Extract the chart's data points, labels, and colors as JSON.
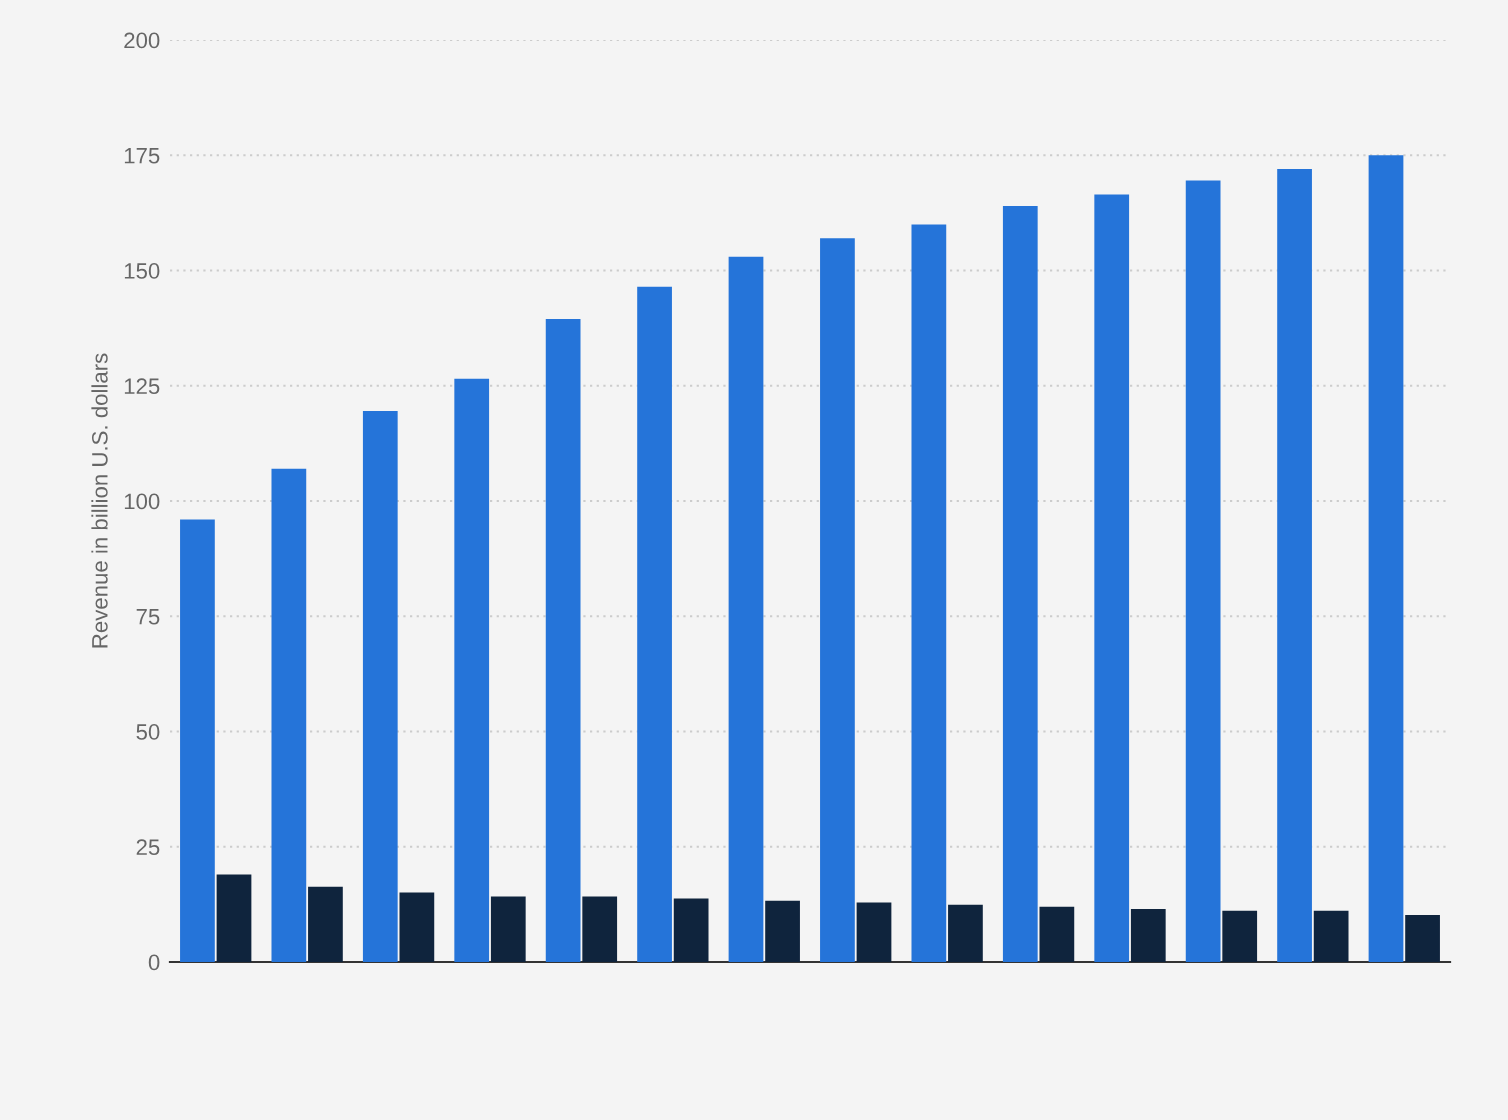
{
  "chart_data": {
    "type": "bar",
    "ylabel": "Revenue in billion U.S. dollars",
    "categories": [
      null,
      null,
      null,
      null,
      null,
      null,
      null,
      null,
      null,
      null,
      null,
      null,
      null,
      null
    ],
    "series": [
      {
        "color": "#2574d9",
        "values": [
          96,
          107,
          119.5,
          126.5,
          139.5,
          146.5,
          153,
          157,
          160,
          164,
          166.5,
          169.5,
          172,
          175
        ]
      },
      {
        "color": "#0f243d",
        "values": [
          19,
          16.3,
          15.1,
          14.2,
          14.2,
          13.8,
          13.3,
          12.9,
          12.4,
          12,
          11.5,
          11.1,
          11.1,
          10.2
        ]
      }
    ],
    "ylim": [
      0,
      200
    ],
    "yticks": [
      0,
      25,
      50,
      75,
      100,
      125,
      150,
      175,
      200
    ],
    "grid": "y",
    "tick_labels": "y",
    "legend": false
  }
}
